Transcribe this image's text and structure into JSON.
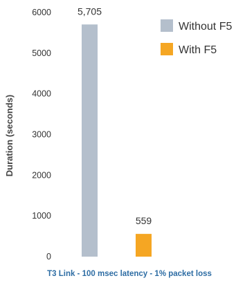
{
  "chart_data": {
    "type": "bar",
    "title": "",
    "xlabel": "T3 Link - 100 msec latency - 1% packet loss",
    "ylabel": "Duration  (seconds)",
    "ylim": [
      0,
      6000
    ],
    "yticks": [
      0,
      1000,
      2000,
      3000,
      4000,
      5000,
      6000
    ],
    "grid": false,
    "legend_position": "top-right",
    "series": [
      {
        "name": "Without F5",
        "value": 5705,
        "label": "5,705",
        "color": "#b4bfcc"
      },
      {
        "name": "With F5",
        "value": 559,
        "label": "559",
        "color": "#f5a623"
      }
    ],
    "xlabel_color": "#2e6da4"
  }
}
